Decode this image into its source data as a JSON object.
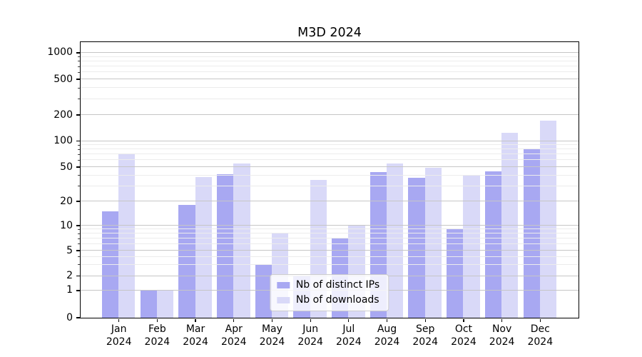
{
  "chart_data": {
    "type": "bar",
    "title": "M3D 2024",
    "categories": [
      "Jan 2024",
      "Feb 2024",
      "Mar 2024",
      "Apr 2024",
      "May 2024",
      "Jun 2024",
      "Jul 2024",
      "Aug 2024",
      "Sep 2024",
      "Oct 2024",
      "Nov 2024",
      "Dec 2024"
    ],
    "series": [
      {
        "name": "Nb of distinct IPs",
        "color": "#a8a8f2",
        "values": [
          15,
          1,
          18,
          41,
          3,
          2,
          7,
          43,
          37,
          9,
          44,
          80
        ]
      },
      {
        "name": "Nb of downloads",
        "color": "#d9d9f8",
        "values": [
          70,
          1,
          38,
          55,
          8,
          35,
          10,
          54,
          49,
          40,
          123,
          170
        ]
      }
    ],
    "yscale": "symlog",
    "yticks": [
      0,
      1,
      2,
      5,
      10,
      20,
      50,
      100,
      200,
      500,
      1000
    ],
    "ylim": [
      0,
      1300
    ],
    "xlabel": "",
    "ylabel": "",
    "grid": "horizontal-major-and-minor",
    "legend_position": "lower center"
  },
  "colors": {
    "grid_major": "#c6c6c6",
    "grid_minor": "#ececec",
    "axis": "#000000",
    "legend_border": "#cccccc"
  }
}
